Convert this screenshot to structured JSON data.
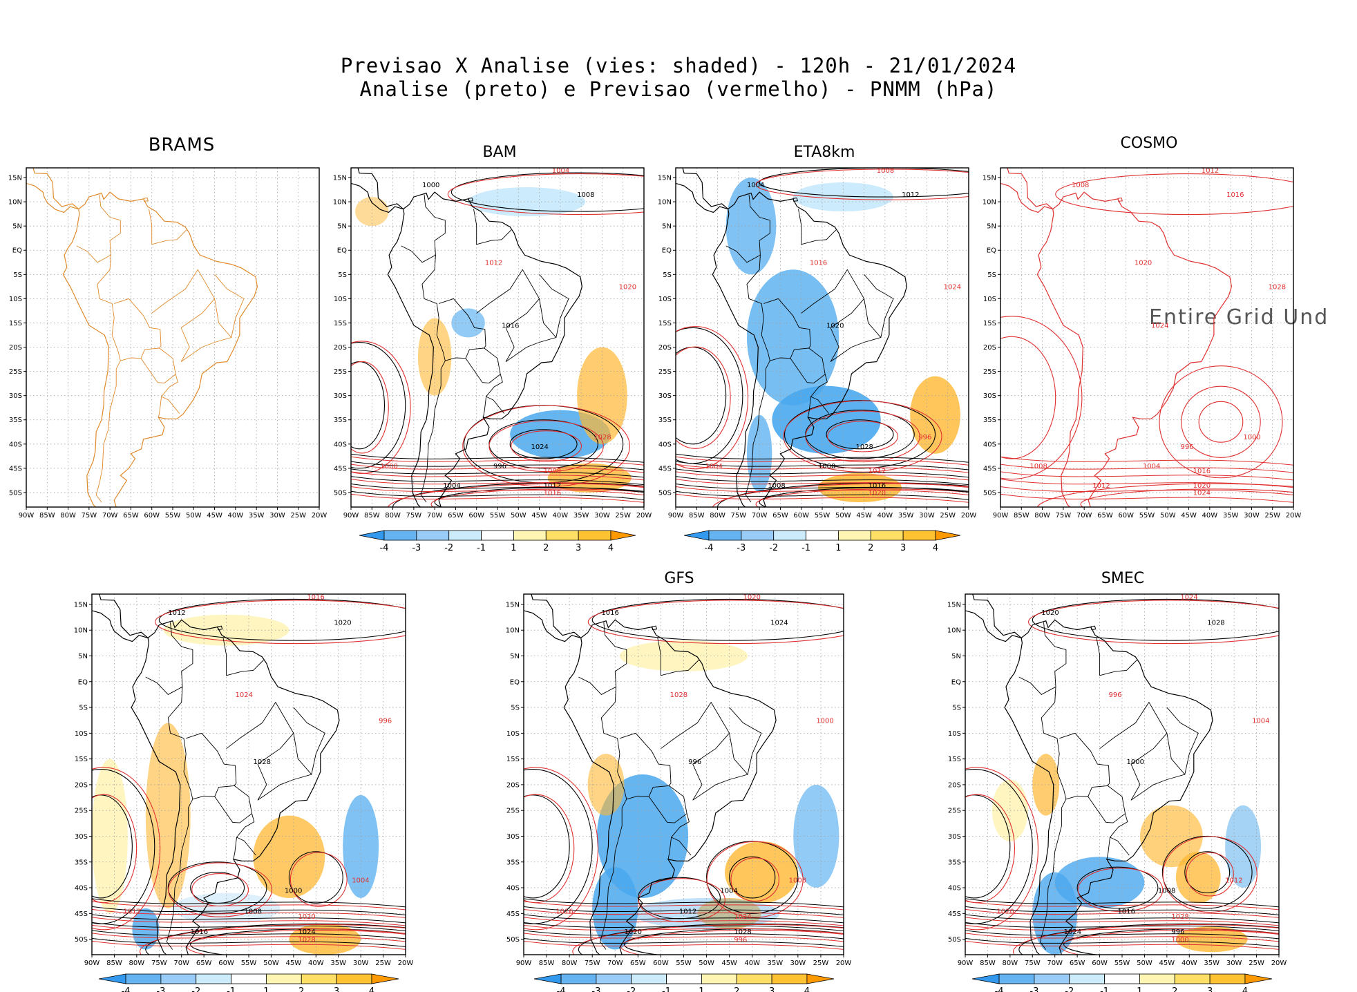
{
  "title": {
    "line1": "Previsao X Analise (vies: shaded) - 120h - 21/01/2024",
    "line2": "Analise (preto) e Previsao (vermelho) - PNMM (hPa)"
  },
  "panels": [
    {
      "id": "brams",
      "label": "BRAMS",
      "has_colorbar": false,
      "status": "empty"
    },
    {
      "id": "bam",
      "label": "BAM",
      "has_colorbar": true
    },
    {
      "id": "eta8km",
      "label": "ETA8km",
      "has_colorbar": true
    },
    {
      "id": "cosmo",
      "label": "COSMO",
      "has_colorbar": false,
      "overlay": "Entire Grid Und"
    },
    {
      "id": "p5",
      "label": "",
      "has_colorbar": true
    },
    {
      "id": "gfs",
      "label": "GFS",
      "has_colorbar": true
    },
    {
      "id": "smec",
      "label": "SMEC",
      "has_colorbar": true
    }
  ],
  "axes": {
    "lon_ticks": [
      "90W",
      "85W",
      "80W",
      "75W",
      "70W",
      "65W",
      "60W",
      "55W",
      "50W",
      "45W",
      "40W",
      "35W",
      "30W",
      "25W",
      "20W"
    ],
    "lat_ticks": [
      "15N",
      "10N",
      "5N",
      "EQ",
      "5S",
      "10S",
      "15S",
      "20S",
      "25S",
      "30S",
      "35S",
      "40S",
      "45S",
      "50S"
    ],
    "lon_range": [
      -90,
      -20
    ],
    "lat_range": [
      -53,
      17
    ]
  },
  "colorbar": {
    "ticks": [
      "-4",
      "-3",
      "-2",
      "-1",
      "1",
      "2",
      "3",
      "4"
    ],
    "colors": [
      "#3399ee",
      "#66b3f2",
      "#99ccf7",
      "#ccecfb",
      "#ffffff",
      "#fff6b3",
      "#ffe066",
      "#ffc233",
      "#ff9900"
    ]
  },
  "contour_labels": {
    "analysis_color": "#000000",
    "forecast_color": "#e03030",
    "values": [
      "996",
      "1000",
      "1004",
      "1008",
      "1012",
      "1016",
      "1020",
      "1024",
      "1028"
    ]
  },
  "colors": {
    "coastline_brams": "#e08a2a",
    "coastline": "#000000",
    "grid": "#a0a0a0",
    "warm_bias": "#ffb833",
    "cold_bias": "#4aa8ee"
  }
}
